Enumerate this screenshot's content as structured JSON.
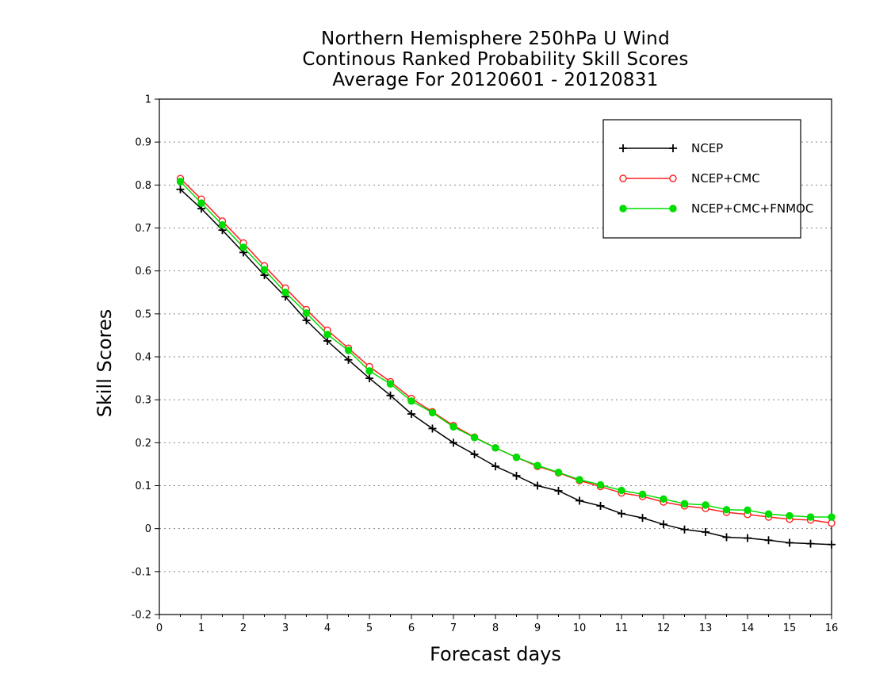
{
  "title_lines": [
    "Northern Hemisphere 250hPa U Wind",
    "Continous Ranked Probability Skill Scores",
    "Average For 20120601 - 20120831"
  ],
  "chart_data": {
    "type": "line",
    "xlabel": "Forecast days",
    "ylabel": "Skill Scores",
    "xlim": [
      0,
      16
    ],
    "ylim": [
      -0.2,
      1
    ],
    "xticks": [
      0,
      1,
      2,
      3,
      4,
      5,
      6,
      7,
      8,
      9,
      10,
      11,
      12,
      13,
      14,
      15,
      16
    ],
    "yticks": [
      -0.2,
      -0.1,
      0,
      0.1,
      0.2,
      0.3,
      0.4,
      0.5,
      0.6,
      0.7,
      0.8,
      0.9,
      1
    ],
    "ytick_labels": [
      "-0.2",
      "-0.1",
      "0",
      "0.1",
      "0.2",
      "0.3",
      "0.4",
      "0.5",
      "0.6",
      "0.7",
      "0.8",
      "0.9",
      "1"
    ],
    "grid": "horizontal dotted",
    "legend_position": "top-right",
    "x": [
      0.5,
      1,
      1.5,
      2,
      2.5,
      3,
      3.5,
      4,
      4.5,
      5,
      5.5,
      6,
      6.5,
      7,
      7.5,
      8,
      8.5,
      9,
      9.5,
      10,
      10.5,
      11,
      11.5,
      12,
      12.5,
      13,
      13.5,
      14,
      14.5,
      15,
      15.5,
      16
    ],
    "series": [
      {
        "name": "NCEP",
        "color": "#000000",
        "marker": "plus",
        "values": [
          0.79,
          0.745,
          0.695,
          0.643,
          0.59,
          0.54,
          0.485,
          0.437,
          0.393,
          0.35,
          0.31,
          0.267,
          0.233,
          0.2,
          0.173,
          0.145,
          0.123,
          0.1,
          0.088,
          0.065,
          0.053,
          0.035,
          0.025,
          0.01,
          -0.002,
          -0.008,
          -0.02,
          -0.022,
          -0.027,
          -0.033,
          -0.035,
          -0.037
        ]
      },
      {
        "name": "NCEP+CMC",
        "color": "#ff2020",
        "marker": "open-circle",
        "values": [
          0.815,
          0.767,
          0.716,
          0.665,
          0.612,
          0.56,
          0.51,
          0.462,
          0.42,
          0.377,
          0.342,
          0.303,
          0.272,
          0.24,
          0.213,
          0.188,
          0.166,
          0.145,
          0.13,
          0.112,
          0.098,
          0.083,
          0.075,
          0.062,
          0.053,
          0.047,
          0.038,
          0.033,
          0.027,
          0.022,
          0.02,
          0.013
        ]
      },
      {
        "name": "NCEP+CMC+FNMOC",
        "color": "#00dd00",
        "marker": "filled-circle",
        "values": [
          0.808,
          0.758,
          0.707,
          0.655,
          0.603,
          0.55,
          0.502,
          0.452,
          0.415,
          0.367,
          0.337,
          0.297,
          0.27,
          0.237,
          0.212,
          0.188,
          0.166,
          0.147,
          0.131,
          0.114,
          0.102,
          0.089,
          0.08,
          0.069,
          0.058,
          0.055,
          0.044,
          0.043,
          0.034,
          0.03,
          0.027,
          0.027
        ]
      }
    ]
  }
}
